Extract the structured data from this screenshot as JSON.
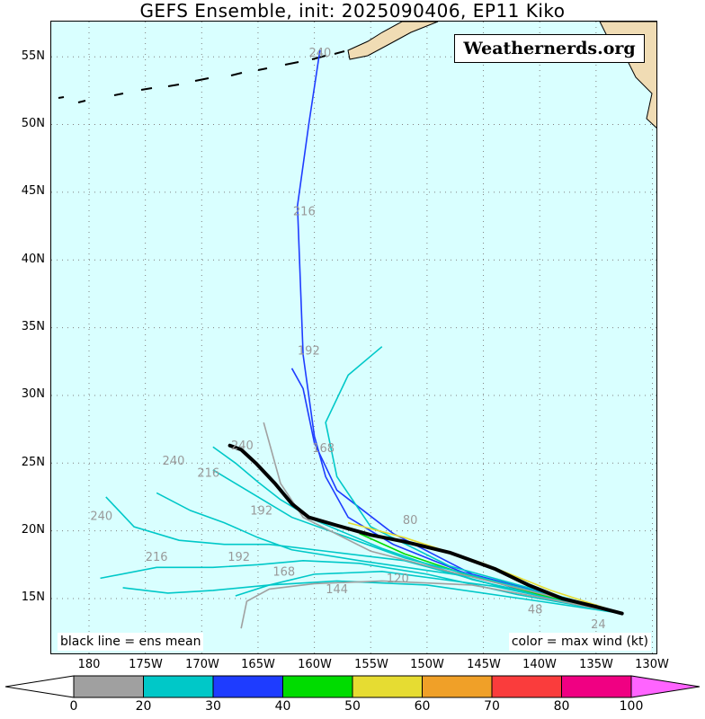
{
  "title": "GEFS Ensemble, init: 2025090406, EP11 Kiko",
  "watermark": "Weathernerds.org",
  "notes": {
    "left": "black line = ens mean",
    "right": "color = max wind (kt)"
  },
  "axes": {
    "lat_ticks": [
      "15N",
      "20N",
      "25N",
      "30N",
      "35N",
      "40N",
      "45N",
      "50N",
      "55N"
    ],
    "lon_ticks": [
      "180",
      "175W",
      "170W",
      "165W",
      "160W",
      "155W",
      "150W",
      "145W",
      "140W",
      "135W",
      "130W"
    ]
  },
  "colorbar": {
    "labels": [
      "0",
      "20",
      "30",
      "40",
      "50",
      "60",
      "70",
      "80",
      "100"
    ],
    "bins": [
      {
        "from": 0,
        "to": 20,
        "color": "#a0a0a0"
      },
      {
        "from": 20,
        "to": 30,
        "color": "#00c8c8"
      },
      {
        "from": 30,
        "to": 40,
        "color": "#1e3cff"
      },
      {
        "from": 40,
        "to": 50,
        "color": "#00dc00"
      },
      {
        "from": 50,
        "to": 60,
        "color": "#e6dc32"
      },
      {
        "from": 60,
        "to": 70,
        "color": "#f0a028"
      },
      {
        "from": 70,
        "to": 80,
        "color": "#fa3c3c"
      },
      {
        "from": 80,
        "to": 100,
        "color": "#f00082"
      }
    ],
    "over_color": "#ff64ff",
    "under_color": "#ffffff"
  },
  "map": {
    "lon_range": [
      "182E",
      "130W"
    ],
    "lat_range": [
      "11.5N",
      "57N"
    ],
    "ocean_color": "#d9ffff",
    "land_color": "#f0dcb4",
    "grid": "dotted"
  },
  "chart_data": {
    "type": "line",
    "title": "GEFS Ensemble, init: 2025090406, EP11 Kiko",
    "ens_mean": {
      "color": "#000000",
      "lon_deg_e": [
        227.3,
        225,
        222,
        219,
        216,
        212,
        208,
        205,
        202,
        199.5,
        198,
        196.5,
        194.8,
        193.5,
        192.5
      ],
      "lat_deg_n": [
        13.9,
        14.4,
        15.0,
        16.0,
        17.2,
        18.4,
        19.2,
        19.7,
        20.4,
        21.0,
        22.0,
        23.5,
        25.0,
        26.0,
        26.3
      ]
    },
    "member_tracks": [
      {
        "color": "#1e3cff",
        "lon": [
          227.3,
          220,
          213,
          207,
          203,
          201,
          200,
          199,
          198.5,
          199.5,
          200.5
        ],
        "lat": [
          13.9,
          15.2,
          17.0,
          19.0,
          21.0,
          24.0,
          27.0,
          33.0,
          44.0,
          50.0,
          55.5
        ]
      },
      {
        "color": "#00c8c8",
        "lon": [
          227.3,
          218,
          210,
          204,
          199,
          195,
          191,
          186,
          181
        ],
        "lat": [
          13.9,
          15.3,
          16.8,
          17.6,
          17.8,
          17.5,
          17.3,
          17.3,
          16.5
        ]
      },
      {
        "color": "#00c8c8",
        "lon": [
          227.3,
          220,
          210,
          202,
          196,
          191,
          187,
          183
        ],
        "lat": [
          13.9,
          14.8,
          16.0,
          16.3,
          16.0,
          15.6,
          15.4,
          15.8
        ]
      },
      {
        "color": "#00c8c8",
        "lon": [
          227.3,
          216,
          208,
          201,
          196,
          192,
          188,
          184,
          181.5
        ],
        "lat": [
          13.9,
          16.0,
          17.8,
          18.5,
          19.0,
          19.0,
          19.3,
          20.3,
          22.5
        ]
      },
      {
        "color": "#00c8c8",
        "lon": [
          227.3,
          214,
          206,
          200,
          197,
          195,
          193,
          191
        ],
        "lat": [
          13.9,
          16.4,
          18.7,
          20.8,
          22.3,
          23.6,
          25.0,
          26.2
        ]
      },
      {
        "color": "#1e3cff",
        "lon": [
          227.3,
          214,
          207,
          202,
          200,
          199,
          198
        ],
        "lat": [
          13.9,
          16.8,
          19.8,
          23.0,
          26.5,
          30.5,
          32.0
        ]
      },
      {
        "color": "#00c8c8",
        "lon": [
          227.3,
          212,
          205,
          202,
          201,
          203,
          206
        ],
        "lat": [
          13.9,
          17.4,
          20.3,
          24.0,
          28.0,
          31.5,
          33.6
        ]
      },
      {
        "color": "#00c8c8",
        "lon": [
          227.3,
          214,
          204,
          198,
          195,
          192,
          189,
          186
        ],
        "lat": [
          13.9,
          16.6,
          17.8,
          18.6,
          19.5,
          20.6,
          21.5,
          22.8
        ]
      },
      {
        "color": "#00c8c8",
        "lon": [
          227.3,
          216,
          206,
          200,
          196,
          193
        ],
        "lat": [
          13.9,
          15.9,
          17.0,
          16.8,
          16.0,
          15.2
        ]
      },
      {
        "color": "#a0a0a0",
        "lon": [
          227.3,
          220,
          214,
          206,
          200,
          196,
          194,
          193.5
        ],
        "lat": [
          13.9,
          15.1,
          16.0,
          16.3,
          16.1,
          15.7,
          14.8,
          12.8
        ]
      },
      {
        "color": "#e6dc32",
        "lon": [
          227.3,
          221,
          215,
          208,
          203
        ],
        "lat": [
          13.9,
          15.6,
          17.6,
          19.5,
          20.6
        ]
      },
      {
        "color": "#00dc00",
        "lon": [
          227.3,
          220,
          213,
          208,
          204
        ],
        "lat": [
          13.9,
          15.3,
          16.9,
          18.3,
          19.8
        ]
      },
      {
        "color": "#00c8c8",
        "lon": [
          227.3,
          215,
          208,
          203,
          198,
          194,
          191
        ],
        "lat": [
          13.9,
          16.5,
          18.0,
          19.5,
          21.0,
          23.0,
          24.5
        ]
      },
      {
        "color": "#a0a0a0",
        "lon": [
          227.3,
          212,
          205,
          199,
          197,
          195.5
        ],
        "lat": [
          13.9,
          17.0,
          18.5,
          21.0,
          23.5,
          28.0
        ]
      }
    ],
    "lead_time_labels": [
      {
        "text": "240",
        "lon": 200.5,
        "lat": 55.0
      },
      {
        "text": "216",
        "lon": 199.1,
        "lat": 43.3
      },
      {
        "text": "192",
        "lon": 199.5,
        "lat": 33.0
      },
      {
        "text": "168",
        "lon": 200.8,
        "lat": 25.8
      },
      {
        "text": "240",
        "lon": 193.6,
        "lat": 26.0
      },
      {
        "text": "240",
        "lon": 187.5,
        "lat": 24.9
      },
      {
        "text": "216",
        "lon": 190.6,
        "lat": 24.0
      },
      {
        "text": "240",
        "lon": 181.1,
        "lat": 20.8
      },
      {
        "text": "216",
        "lon": 186.0,
        "lat": 17.8
      },
      {
        "text": "192",
        "lon": 193.3,
        "lat": 17.8
      },
      {
        "text": "168",
        "lon": 197.3,
        "lat": 16.7
      },
      {
        "text": "144",
        "lon": 202.0,
        "lat": 15.4
      },
      {
        "text": "120",
        "lon": 207.4,
        "lat": 16.2
      },
      {
        "text": "192",
        "lon": 195.3,
        "lat": 21.2
      },
      {
        "text": "80",
        "lon": 208.5,
        "lat": 20.5
      },
      {
        "text": "48",
        "lon": 219.6,
        "lat": 13.9
      },
      {
        "text": "24",
        "lon": 225.2,
        "lat": 12.8
      }
    ]
  }
}
